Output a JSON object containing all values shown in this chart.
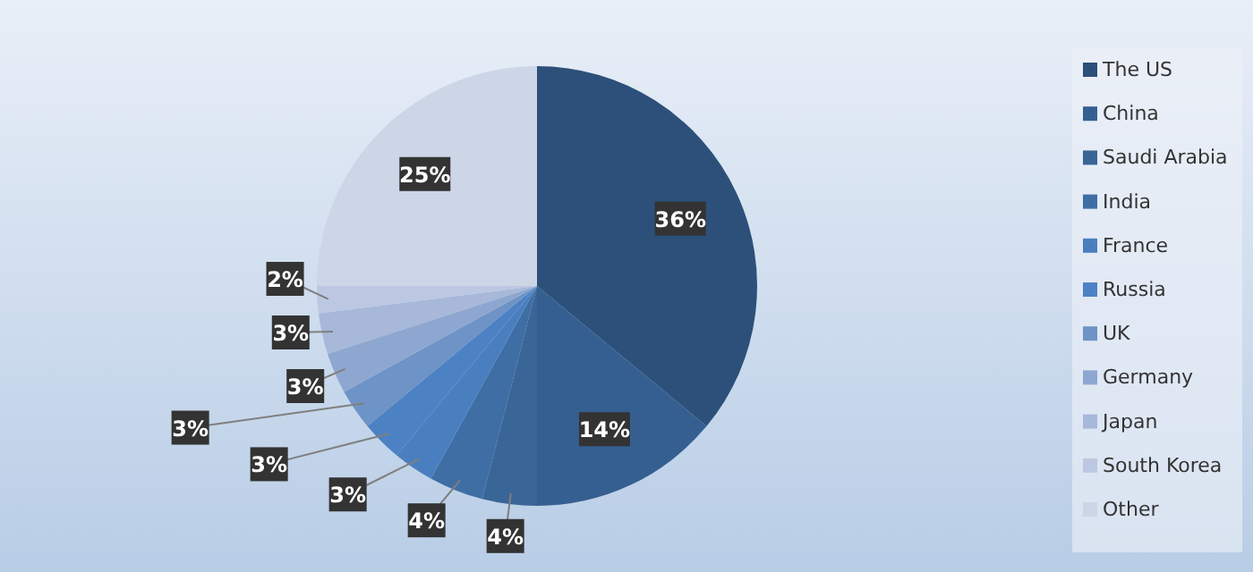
{
  "chart_data": {
    "type": "pie",
    "categories": [
      "The US",
      "China",
      "Saudi Arabia",
      "India",
      "France",
      "Russia",
      "UK",
      "Germany",
      "Japan",
      "South Korea",
      "Other"
    ],
    "values": [
      36,
      14,
      4,
      4,
      3,
      3,
      3,
      3,
      3,
      2,
      25
    ],
    "colors": [
      "#2c5079",
      "#365f91",
      "#3a6597",
      "#3f6ea5",
      "#4a7fbf",
      "#4c82c4",
      "#6e93c6",
      "#8ea7d0",
      "#a7b8d9",
      "#bcc8e1",
      "#ccd6e7"
    ],
    "data_labels": true,
    "value_labels": [
      "36%",
      "14%",
      "4%",
      "4%",
      "3%",
      "3%",
      "3%",
      "3%",
      "3%",
      "2%",
      "25%"
    ],
    "legend": "right"
  }
}
